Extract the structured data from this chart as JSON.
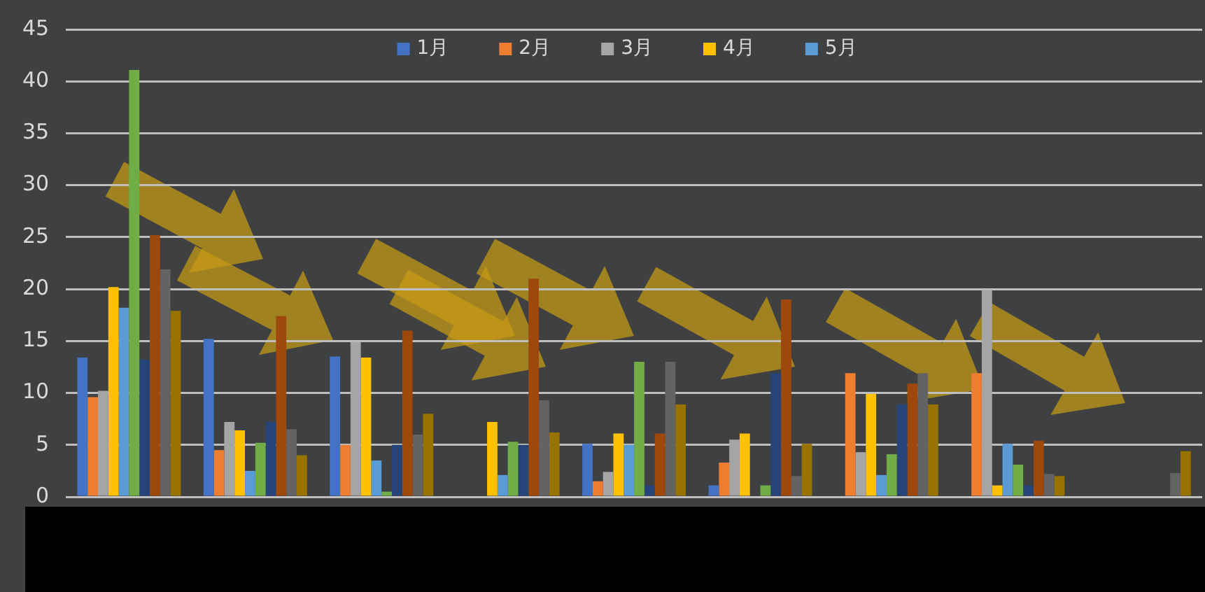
{
  "chart_data": {
    "type": "bar",
    "categories": [
      null,
      null,
      null,
      null,
      null,
      null,
      null,
      null,
      null
    ],
    "series": [
      {
        "name": "1月",
        "color": "#4472c4",
        "values": [
          13.4,
          15.2,
          13.5,
          null,
          5.1,
          1.1,
          null,
          null,
          null
        ]
      },
      {
        "name": "2月",
        "color": "#ed7d31",
        "values": [
          9.6,
          4.5,
          5.0,
          null,
          1.5,
          3.3,
          11.9,
          11.9,
          null
        ]
      },
      {
        "name": "3月",
        "color": "#a5a5a5",
        "values": [
          10.2,
          7.2,
          14.9,
          null,
          2.4,
          5.5,
          4.3,
          19.9,
          null
        ]
      },
      {
        "name": "4月",
        "color": "#ffc000",
        "values": [
          20.2,
          6.4,
          13.4,
          7.2,
          6.1,
          6.1,
          9.9,
          1.1,
          null
        ]
      },
      {
        "name": "5月",
        "color": "#5b9bd5",
        "values": [
          18.2,
          2.5,
          3.5,
          2.1,
          5.0,
          null,
          2.1,
          5.1,
          null
        ]
      },
      {
        "color": "#70ad47",
        "values": [
          41.1,
          5.2,
          0.5,
          5.3,
          13.0,
          1.1,
          4.1,
          3.1,
          null
        ]
      },
      {
        "color": "#264478",
        "values": [
          13.2,
          7.2,
          5.0,
          5.0,
          1.1,
          11.9,
          8.9,
          1.1,
          null
        ]
      },
      {
        "color": "#9e480e",
        "values": [
          25.2,
          17.4,
          16.0,
          21.0,
          6.1,
          19.0,
          10.9,
          5.4,
          null
        ]
      },
      {
        "color": "#636363",
        "values": [
          21.9,
          6.5,
          6.0,
          9.3,
          13.0,
          2.0,
          11.9,
          2.2,
          2.3
        ]
      },
      {
        "color": "#997300",
        "values": [
          17.9,
          4.0,
          8.0,
          6.2,
          8.9,
          5.1,
          8.9,
          2.0,
          4.4
        ]
      }
    ],
    "ylim": [
      0,
      45
    ],
    "yticks": [
      0,
      5,
      10,
      15,
      20,
      25,
      30,
      35,
      40,
      45
    ],
    "grid": "y",
    "legend": "top",
    "tick_labels": "y"
  }
}
